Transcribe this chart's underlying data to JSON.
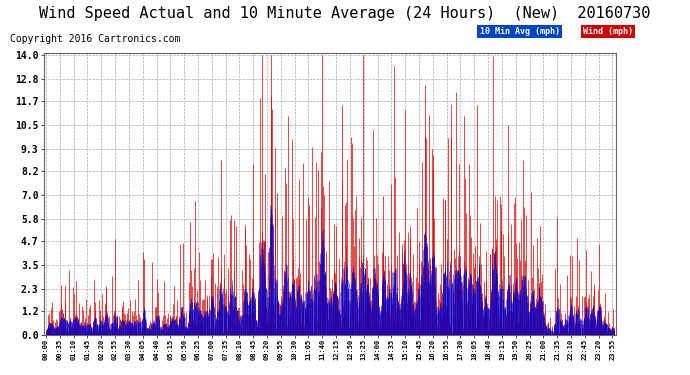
{
  "title": "Wind Speed Actual and 10 Minute Average (24 Hours)  (New)  20160730",
  "copyright": "Copyright 2016 Cartronics.com",
  "legend_blue_label": "10 Min Avg (mph)",
  "legend_red_label": "Wind (mph)",
  "yticks": [
    0.0,
    1.2,
    2.3,
    3.5,
    4.7,
    5.8,
    7.0,
    8.2,
    9.3,
    10.5,
    11.7,
    12.8,
    14.0
  ],
  "ymin": 0.0,
  "ymax": 14.0,
  "background_color": "#ffffff",
  "plot_bg_color": "#ffffff",
  "grid_color": "#aaaaaa",
  "title_fontsize": 11,
  "copyright_fontsize": 7,
  "bar_color_wind": "#dd0000",
  "bar_color_avg": "#0000cc",
  "legend_bg_blue": "#0044cc",
  "legend_bg_red": "#cc0000"
}
